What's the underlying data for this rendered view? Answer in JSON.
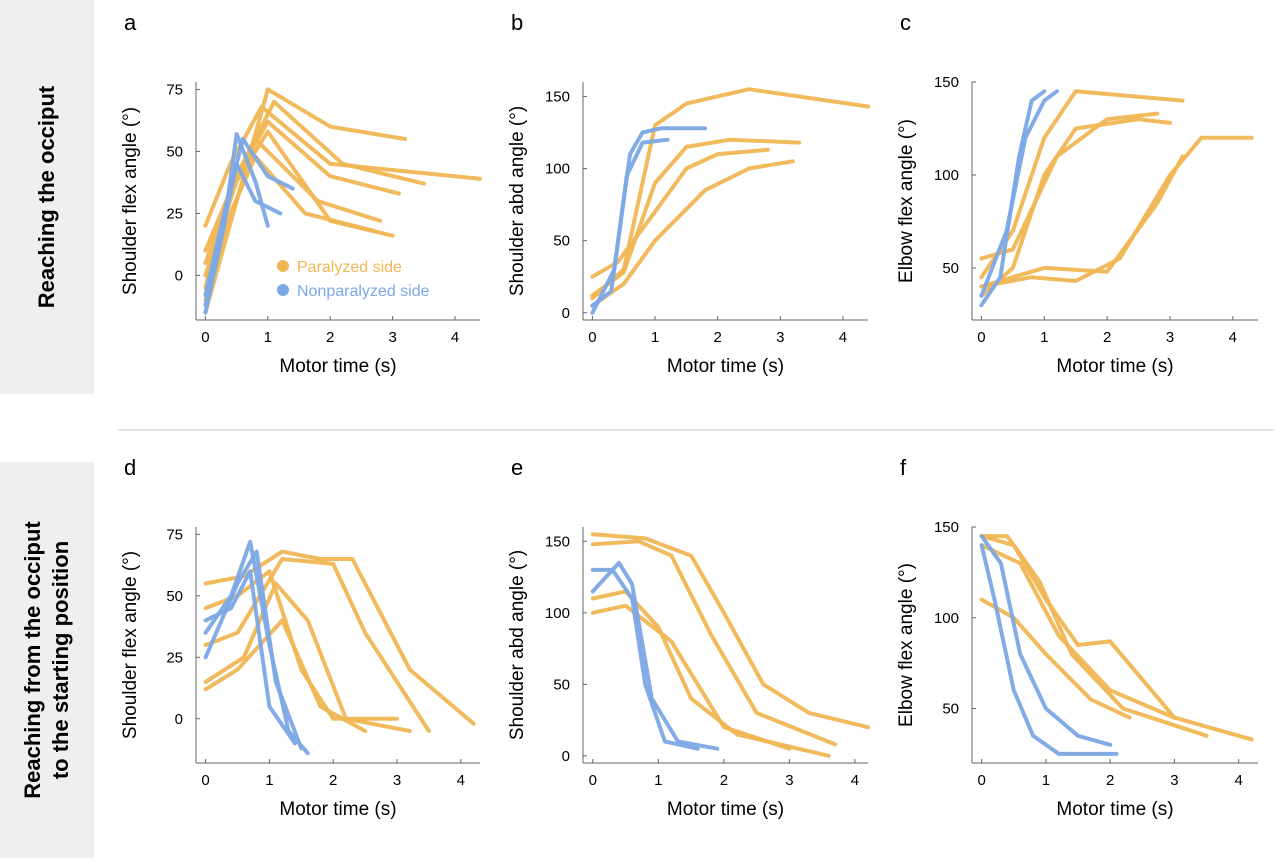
{
  "row_labels": [
    {
      "lines": [
        "Reaching the occiput"
      ]
    },
    {
      "lines": [
        "Reaching from the occiput",
        "to the starting position"
      ]
    }
  ],
  "colors": {
    "paralyzed": "#F0B654",
    "nonparalyzed": "#7CA8E6",
    "axis": "#666666",
    "separator": "#e2e2e2",
    "label_bg": "#efefef"
  },
  "legend": {
    "placement": "inside-bottom-right of panel a",
    "entries": [
      {
        "label": "Paralyzed side",
        "color": "#F0B654"
      },
      {
        "label": "Nonparalyzed side",
        "color": "#7CA8E6"
      }
    ]
  },
  "chart_data": [
    {
      "panel": "a",
      "type": "line",
      "xlabel": "Motor time (s)",
      "ylabel": "Shoulder flex angle (°)",
      "xlim": [
        -0.15,
        4.4
      ],
      "ylim": [
        -18,
        78
      ],
      "xticks": [
        0,
        1,
        2,
        3,
        4
      ],
      "yticks": [
        0,
        25,
        50,
        75
      ],
      "series": [
        {
          "group": "paralyzed",
          "x": [
            0,
            0.5,
            1,
            2,
            3.2
          ],
          "y": [
            -15,
            30,
            75,
            60,
            55
          ]
        },
        {
          "group": "paralyzed",
          "x": [
            0,
            0.4,
            0.9,
            2,
            4.4
          ],
          "y": [
            20,
            45,
            68,
            45,
            39
          ]
        },
        {
          "group": "paralyzed",
          "x": [
            0,
            0.5,
            1,
            2,
            3.1
          ],
          "y": [
            10,
            40,
            62,
            40,
            33
          ]
        },
        {
          "group": "paralyzed",
          "x": [
            0,
            0.4,
            0.8,
            1.8,
            2.8
          ],
          "y": [
            -5,
            35,
            55,
            30,
            22
          ]
        },
        {
          "group": "paralyzed",
          "x": [
            0,
            0.5,
            1,
            2,
            3
          ],
          "y": [
            0,
            38,
            58,
            22,
            16
          ]
        },
        {
          "group": "paralyzed",
          "x": [
            0,
            0.4,
            0.8,
            1.6,
            2.7
          ],
          "y": [
            -10,
            25,
            48,
            25,
            18
          ]
        },
        {
          "group": "paralyzed",
          "x": [
            0,
            0.5,
            1.1,
            2.2,
            3.5
          ],
          "y": [
            5,
            40,
            70,
            45,
            37
          ]
        },
        {
          "group": "nonparalyzed",
          "x": [
            0,
            0.3,
            0.5,
            0.8,
            1.0
          ],
          "y": [
            -15,
            20,
            57,
            38,
            20
          ]
        },
        {
          "group": "nonparalyzed",
          "x": [
            0,
            0.3,
            0.6,
            1.0,
            1.4
          ],
          "y": [
            -8,
            25,
            55,
            40,
            35
          ]
        },
        {
          "group": "nonparalyzed",
          "x": [
            0,
            0.25,
            0.5,
            0.8,
            1.2
          ],
          "y": [
            -12,
            15,
            45,
            30,
            25
          ]
        }
      ]
    },
    {
      "panel": "b",
      "type": "line",
      "xlabel": "Motor time (s)",
      "ylabel": "Shoulder abd angle (°)",
      "xlim": [
        -0.15,
        4.4
      ],
      "ylim": [
        -5,
        160
      ],
      "xticks": [
        0,
        1,
        2,
        3,
        4
      ],
      "yticks": [
        0,
        50,
        100,
        150
      ],
      "series": [
        {
          "group": "paralyzed",
          "x": [
            0,
            0.5,
            1,
            1.5,
            2.5,
            4.4
          ],
          "y": [
            10,
            30,
            130,
            145,
            155,
            143
          ]
        },
        {
          "group": "paralyzed",
          "x": [
            0,
            0.5,
            1,
            1.5,
            2.2,
            3.3
          ],
          "y": [
            12,
            28,
            90,
            115,
            120,
            118
          ]
        },
        {
          "group": "paralyzed",
          "x": [
            0,
            0.5,
            1,
            1.8,
            2.5,
            3.2
          ],
          "y": [
            5,
            20,
            50,
            85,
            100,
            105
          ]
        },
        {
          "group": "paralyzed",
          "x": [
            0,
            0.4,
            1,
            1.5,
            2,
            2.8
          ],
          "y": [
            25,
            35,
            70,
            100,
            110,
            113
          ]
        },
        {
          "group": "nonparalyzed",
          "x": [
            0,
            0.3,
            0.6,
            0.8,
            1.1,
            1.8
          ],
          "y": [
            5,
            15,
            110,
            125,
            128,
            128
          ]
        },
        {
          "group": "nonparalyzed",
          "x": [
            0,
            0.35,
            0.55,
            0.8,
            1.2
          ],
          "y": [
            0,
            30,
            95,
            118,
            120
          ]
        }
      ]
    },
    {
      "panel": "c",
      "type": "line",
      "xlabel": "Motor time (s)",
      "ylabel": "Elbow flex angle (°)",
      "xlim": [
        -0.15,
        4.4
      ],
      "ylim": [
        22,
        150
      ],
      "xticks": [
        0,
        1,
        2,
        3,
        4
      ],
      "yticks": [
        50,
        100,
        150
      ],
      "series": [
        {
          "group": "paralyzed",
          "x": [
            0,
            0.5,
            1,
            1.5,
            3.2
          ],
          "y": [
            45,
            70,
            120,
            145,
            140
          ]
        },
        {
          "group": "paralyzed",
          "x": [
            0,
            0.8,
            1.5,
            2.2,
            3,
            3.5,
            4.3
          ],
          "y": [
            40,
            45,
            43,
            55,
            100,
            120,
            120
          ]
        },
        {
          "group": "paralyzed",
          "x": [
            0,
            1,
            2,
            2.8,
            3.2
          ],
          "y": [
            40,
            50,
            48,
            85,
            110
          ]
        },
        {
          "group": "paralyzed",
          "x": [
            0,
            0.5,
            1,
            1.5,
            2.5,
            3
          ],
          "y": [
            35,
            50,
            100,
            125,
            130,
            128
          ]
        },
        {
          "group": "paralyzed",
          "x": [
            0,
            0.5,
            1.2,
            2,
            2.8
          ],
          "y": [
            55,
            60,
            110,
            130,
            133
          ]
        },
        {
          "group": "nonparalyzed",
          "x": [
            0,
            0.3,
            0.6,
            0.8,
            1.0
          ],
          "y": [
            30,
            45,
            110,
            140,
            145
          ]
        },
        {
          "group": "nonparalyzed",
          "x": [
            0,
            0.4,
            0.7,
            1.0,
            1.2
          ],
          "y": [
            35,
            70,
            120,
            140,
            145
          ]
        }
      ]
    },
    {
      "panel": "d",
      "type": "line",
      "xlabel": "Motor time (s)",
      "ylabel": "Shoulder flex angle (°)",
      "xlim": [
        -0.15,
        4.3
      ],
      "ylim": [
        -18,
        78
      ],
      "xticks": [
        0,
        1,
        2,
        3,
        4
      ],
      "yticks": [
        0,
        25,
        50,
        75
      ],
      "series": [
        {
          "group": "paralyzed",
          "x": [
            0,
            0.6,
            1.2,
            1.8,
            2.3,
            3.2,
            4.2
          ],
          "y": [
            55,
            58,
            68,
            65,
            65,
            20,
            -2
          ]
        },
        {
          "group": "paralyzed",
          "x": [
            0,
            0.5,
            1.2,
            2,
            2.5,
            3.5
          ],
          "y": [
            30,
            35,
            65,
            63,
            35,
            -5
          ]
        },
        {
          "group": "paralyzed",
          "x": [
            0,
            0.6,
            1.1,
            1.6,
            2.2,
            3.2
          ],
          "y": [
            15,
            25,
            55,
            40,
            0,
            -5
          ]
        },
        {
          "group": "paralyzed",
          "x": [
            0,
            0.5,
            1,
            1.5,
            2,
            3
          ],
          "y": [
            45,
            50,
            60,
            20,
            0,
            0
          ]
        },
        {
          "group": "paralyzed",
          "x": [
            0,
            0.5,
            1.2,
            1.8,
            2.5
          ],
          "y": [
            12,
            20,
            40,
            5,
            -5
          ]
        },
        {
          "group": "nonparalyzed",
          "x": [
            0,
            0.4,
            0.7,
            1.0,
            1.3,
            1.6
          ],
          "y": [
            35,
            50,
            72,
            30,
            -5,
            -14
          ]
        },
        {
          "group": "nonparalyzed",
          "x": [
            0,
            0.5,
            0.8,
            1.1,
            1.5
          ],
          "y": [
            25,
            55,
            68,
            15,
            -12
          ]
        },
        {
          "group": "nonparalyzed",
          "x": [
            0,
            0.4,
            0.7,
            1.0,
            1.4
          ],
          "y": [
            40,
            45,
            60,
            5,
            -10
          ]
        }
      ]
    },
    {
      "panel": "e",
      "type": "line",
      "xlabel": "Motor time (s)",
      "ylabel": "Shoulder abd angle (°)",
      "xlim": [
        -0.15,
        4.2
      ],
      "ylim": [
        -5,
        160
      ],
      "xticks": [
        0,
        1,
        2,
        3,
        4
      ],
      "yticks": [
        0,
        50,
        100,
        150
      ],
      "series": [
        {
          "group": "paralyzed",
          "x": [
            0,
            0.8,
            1.5,
            2,
            2.6,
            3.3,
            4.2
          ],
          "y": [
            155,
            152,
            140,
            100,
            50,
            30,
            20
          ]
        },
        {
          "group": "paralyzed",
          "x": [
            0,
            0.7,
            1.2,
            1.8,
            2.5,
            3.7
          ],
          "y": [
            148,
            150,
            140,
            85,
            30,
            8
          ]
        },
        {
          "group": "paralyzed",
          "x": [
            0,
            0.5,
            1,
            1.5,
            2.2,
            3.6
          ],
          "y": [
            110,
            115,
            90,
            40,
            15,
            0
          ]
        },
        {
          "group": "paralyzed",
          "x": [
            0,
            0.5,
            1.2,
            2,
            3
          ],
          "y": [
            100,
            105,
            80,
            20,
            5
          ]
        },
        {
          "group": "nonparalyzed",
          "x": [
            0,
            0.3,
            0.6,
            0.8,
            1.1,
            1.6
          ],
          "y": [
            130,
            130,
            110,
            50,
            10,
            5
          ]
        },
        {
          "group": "nonparalyzed",
          "x": [
            0,
            0.4,
            0.6,
            0.9,
            1.3,
            1.9
          ],
          "y": [
            115,
            135,
            120,
            40,
            10,
            5
          ]
        }
      ]
    },
    {
      "panel": "f",
      "type": "line",
      "xlabel": "Motor time (s)",
      "ylabel": "Elbow flex angle (°)",
      "xlim": [
        -0.15,
        4.3
      ],
      "ylim": [
        20,
        150
      ],
      "xticks": [
        0,
        1,
        2,
        3,
        4
      ],
      "yticks": [
        50,
        100,
        150
      ],
      "series": [
        {
          "group": "paralyzed",
          "x": [
            0,
            0.5,
            1,
            1.5,
            2,
            3,
            4.2
          ],
          "y": [
            145,
            140,
            110,
            85,
            87,
            45,
            33
          ]
        },
        {
          "group": "paralyzed",
          "x": [
            0,
            0.4,
            0.9,
            1.4,
            2.2,
            3.5
          ],
          "y": [
            145,
            145,
            120,
            80,
            50,
            35
          ]
        },
        {
          "group": "paralyzed",
          "x": [
            0,
            0.5,
            1,
            1.7,
            2.3
          ],
          "y": [
            110,
            100,
            80,
            55,
            45
          ]
        },
        {
          "group": "paralyzed",
          "x": [
            0,
            0.6,
            1.2,
            2,
            3
          ],
          "y": [
            140,
            130,
            90,
            60,
            45
          ]
        },
        {
          "group": "nonparalyzed",
          "x": [
            0,
            0.2,
            0.5,
            0.8,
            1.2,
            2.1
          ],
          "y": [
            140,
            110,
            60,
            35,
            25,
            25
          ]
        },
        {
          "group": "nonparalyzed",
          "x": [
            0,
            0.3,
            0.6,
            1.0,
            1.5,
            2.0
          ],
          "y": [
            145,
            130,
            80,
            50,
            35,
            30
          ]
        }
      ]
    }
  ]
}
